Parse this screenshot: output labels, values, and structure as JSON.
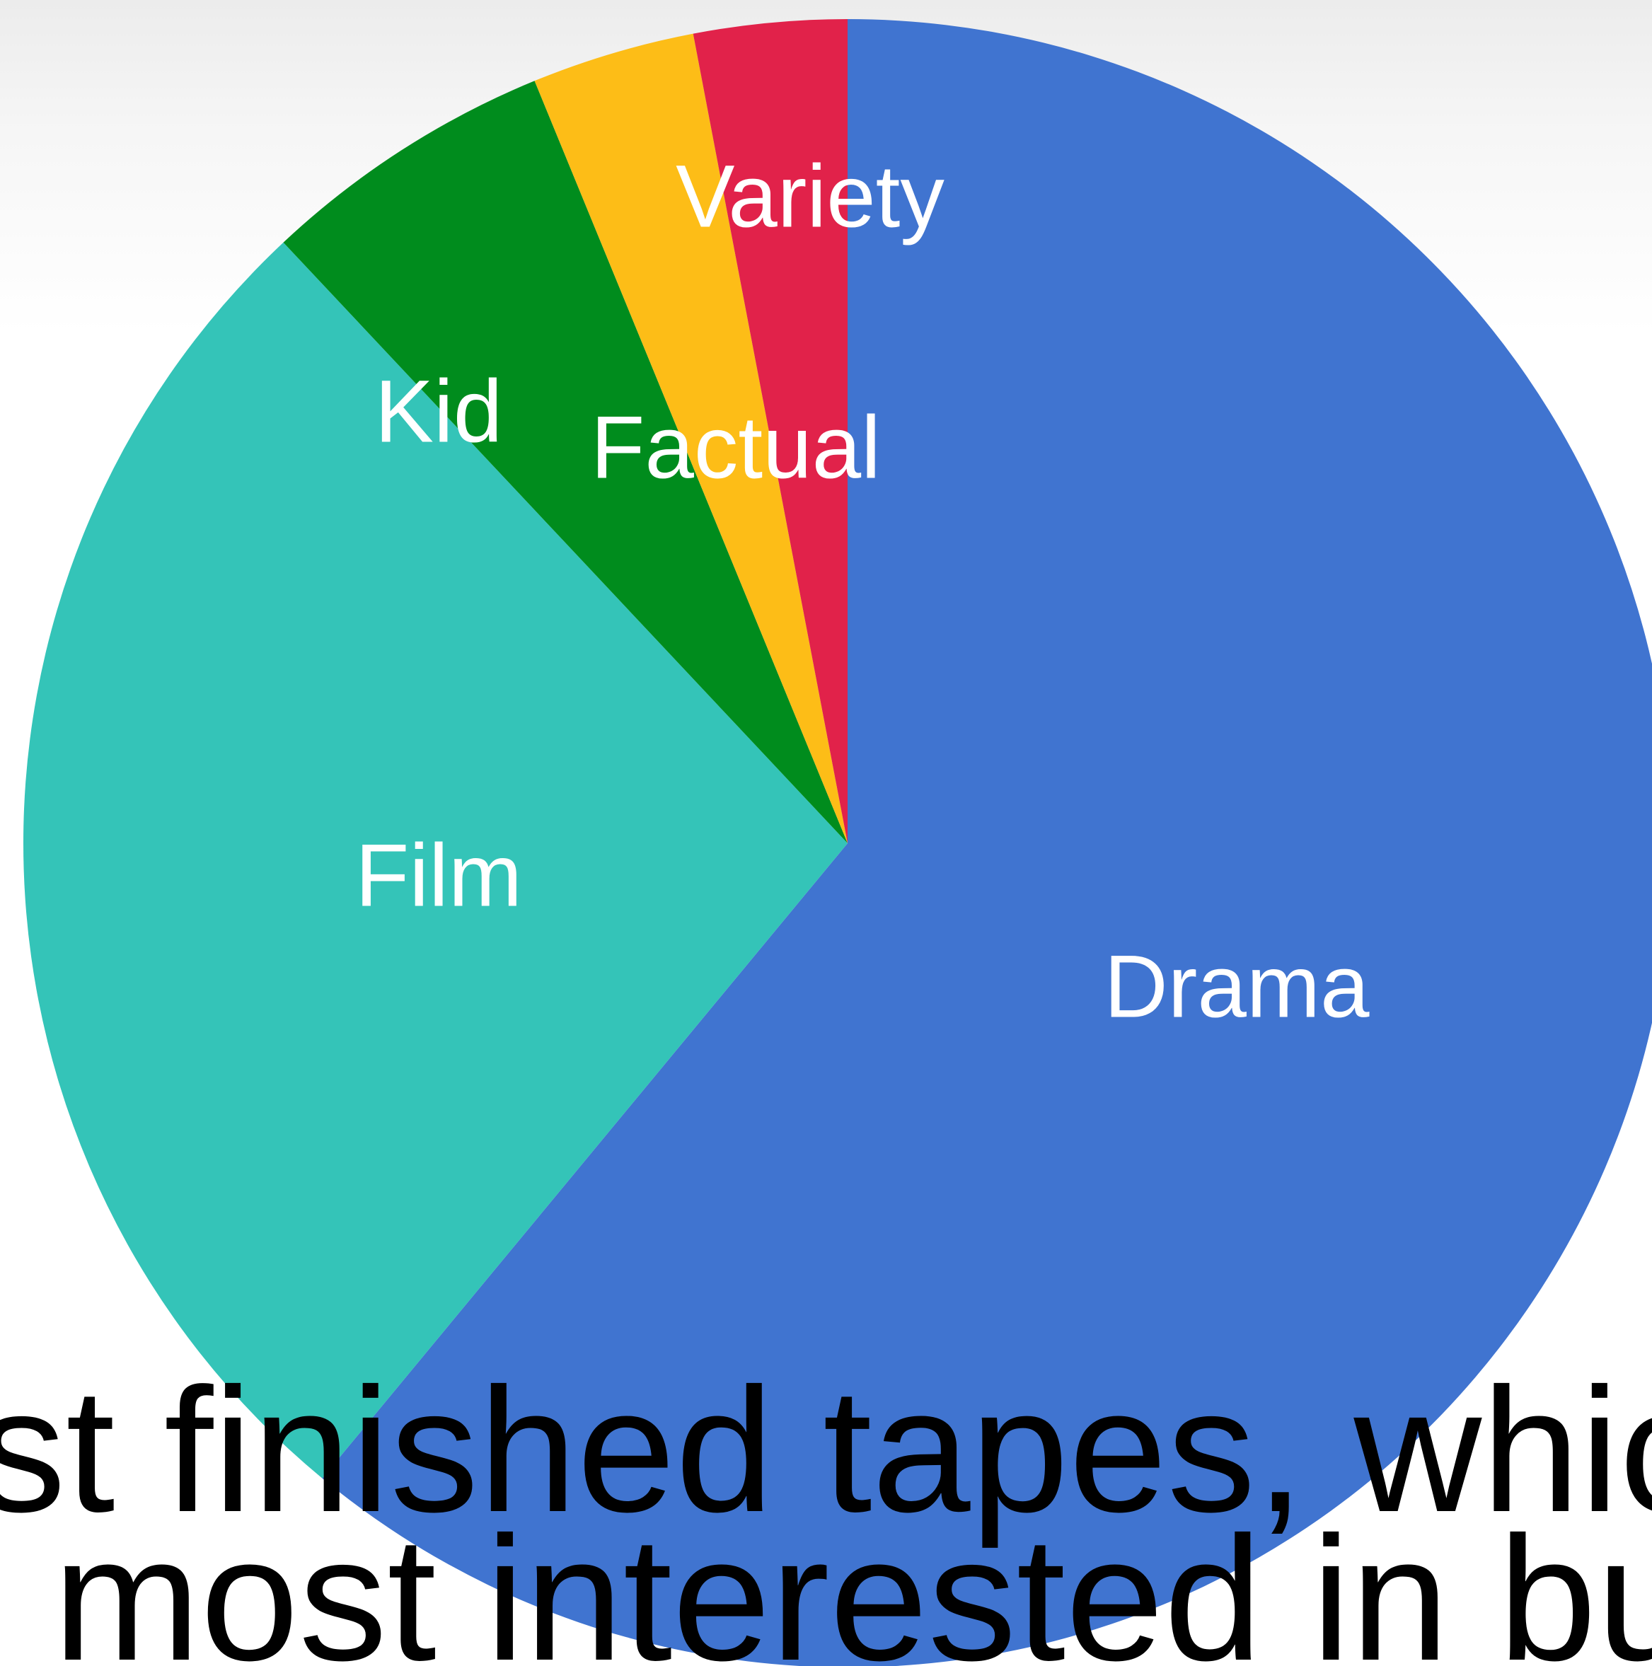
{
  "chart_data": {
    "type": "pie",
    "title": "",
    "start_angle_deg": 0,
    "direction": "clockwise",
    "slices": [
      {
        "label": "Drama",
        "value": 61.0,
        "color": "#4074d0"
      },
      {
        "label": "Film",
        "value": 27.0,
        "color": "#34c4b8"
      },
      {
        "label": "Kid",
        "value": 5.8,
        "color": "#008c1d"
      },
      {
        "label": "Factual",
        "value": 3.2,
        "color": "#fdbd17"
      },
      {
        "label": "Variety",
        "value": 3.0,
        "color": "#e1224a"
      }
    ]
  },
  "caption": {
    "line1": "st finished tapes, which g",
    "line2": "most interested in buyir"
  }
}
